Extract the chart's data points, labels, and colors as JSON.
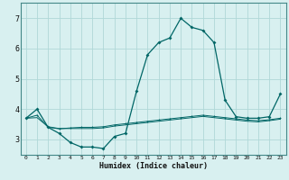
{
  "xlabel": "Humidex (Indice chaleur)",
  "bg_color": "#d8f0f0",
  "grid_color": "#b0d8d8",
  "line_color": "#006666",
  "xlim": [
    -0.5,
    23.5
  ],
  "ylim": [
    2.5,
    7.5
  ],
  "xticks": [
    0,
    1,
    2,
    3,
    4,
    5,
    6,
    7,
    8,
    9,
    10,
    11,
    12,
    13,
    14,
    15,
    16,
    17,
    18,
    19,
    20,
    21,
    22,
    23
  ],
  "yticks": [
    3,
    4,
    5,
    6,
    7
  ],
  "series1": [
    3.7,
    4.0,
    3.4,
    3.2,
    2.9,
    2.75,
    2.75,
    2.7,
    3.1,
    3.2,
    4.6,
    5.8,
    6.2,
    6.35,
    7.0,
    6.7,
    6.6,
    6.2,
    4.3,
    3.75,
    3.7,
    3.7,
    3.75,
    4.5
  ],
  "series2": [
    3.7,
    3.8,
    3.4,
    3.35,
    3.38,
    3.4,
    3.4,
    3.42,
    3.48,
    3.52,
    3.56,
    3.6,
    3.64,
    3.68,
    3.72,
    3.76,
    3.8,
    3.76,
    3.72,
    3.68,
    3.64,
    3.62,
    3.65,
    3.7
  ],
  "series3": [
    3.7,
    3.72,
    3.42,
    3.36,
    3.36,
    3.36,
    3.36,
    3.38,
    3.44,
    3.48,
    3.52,
    3.56,
    3.6,
    3.64,
    3.68,
    3.72,
    3.76,
    3.72,
    3.68,
    3.64,
    3.6,
    3.58,
    3.62,
    3.67
  ]
}
